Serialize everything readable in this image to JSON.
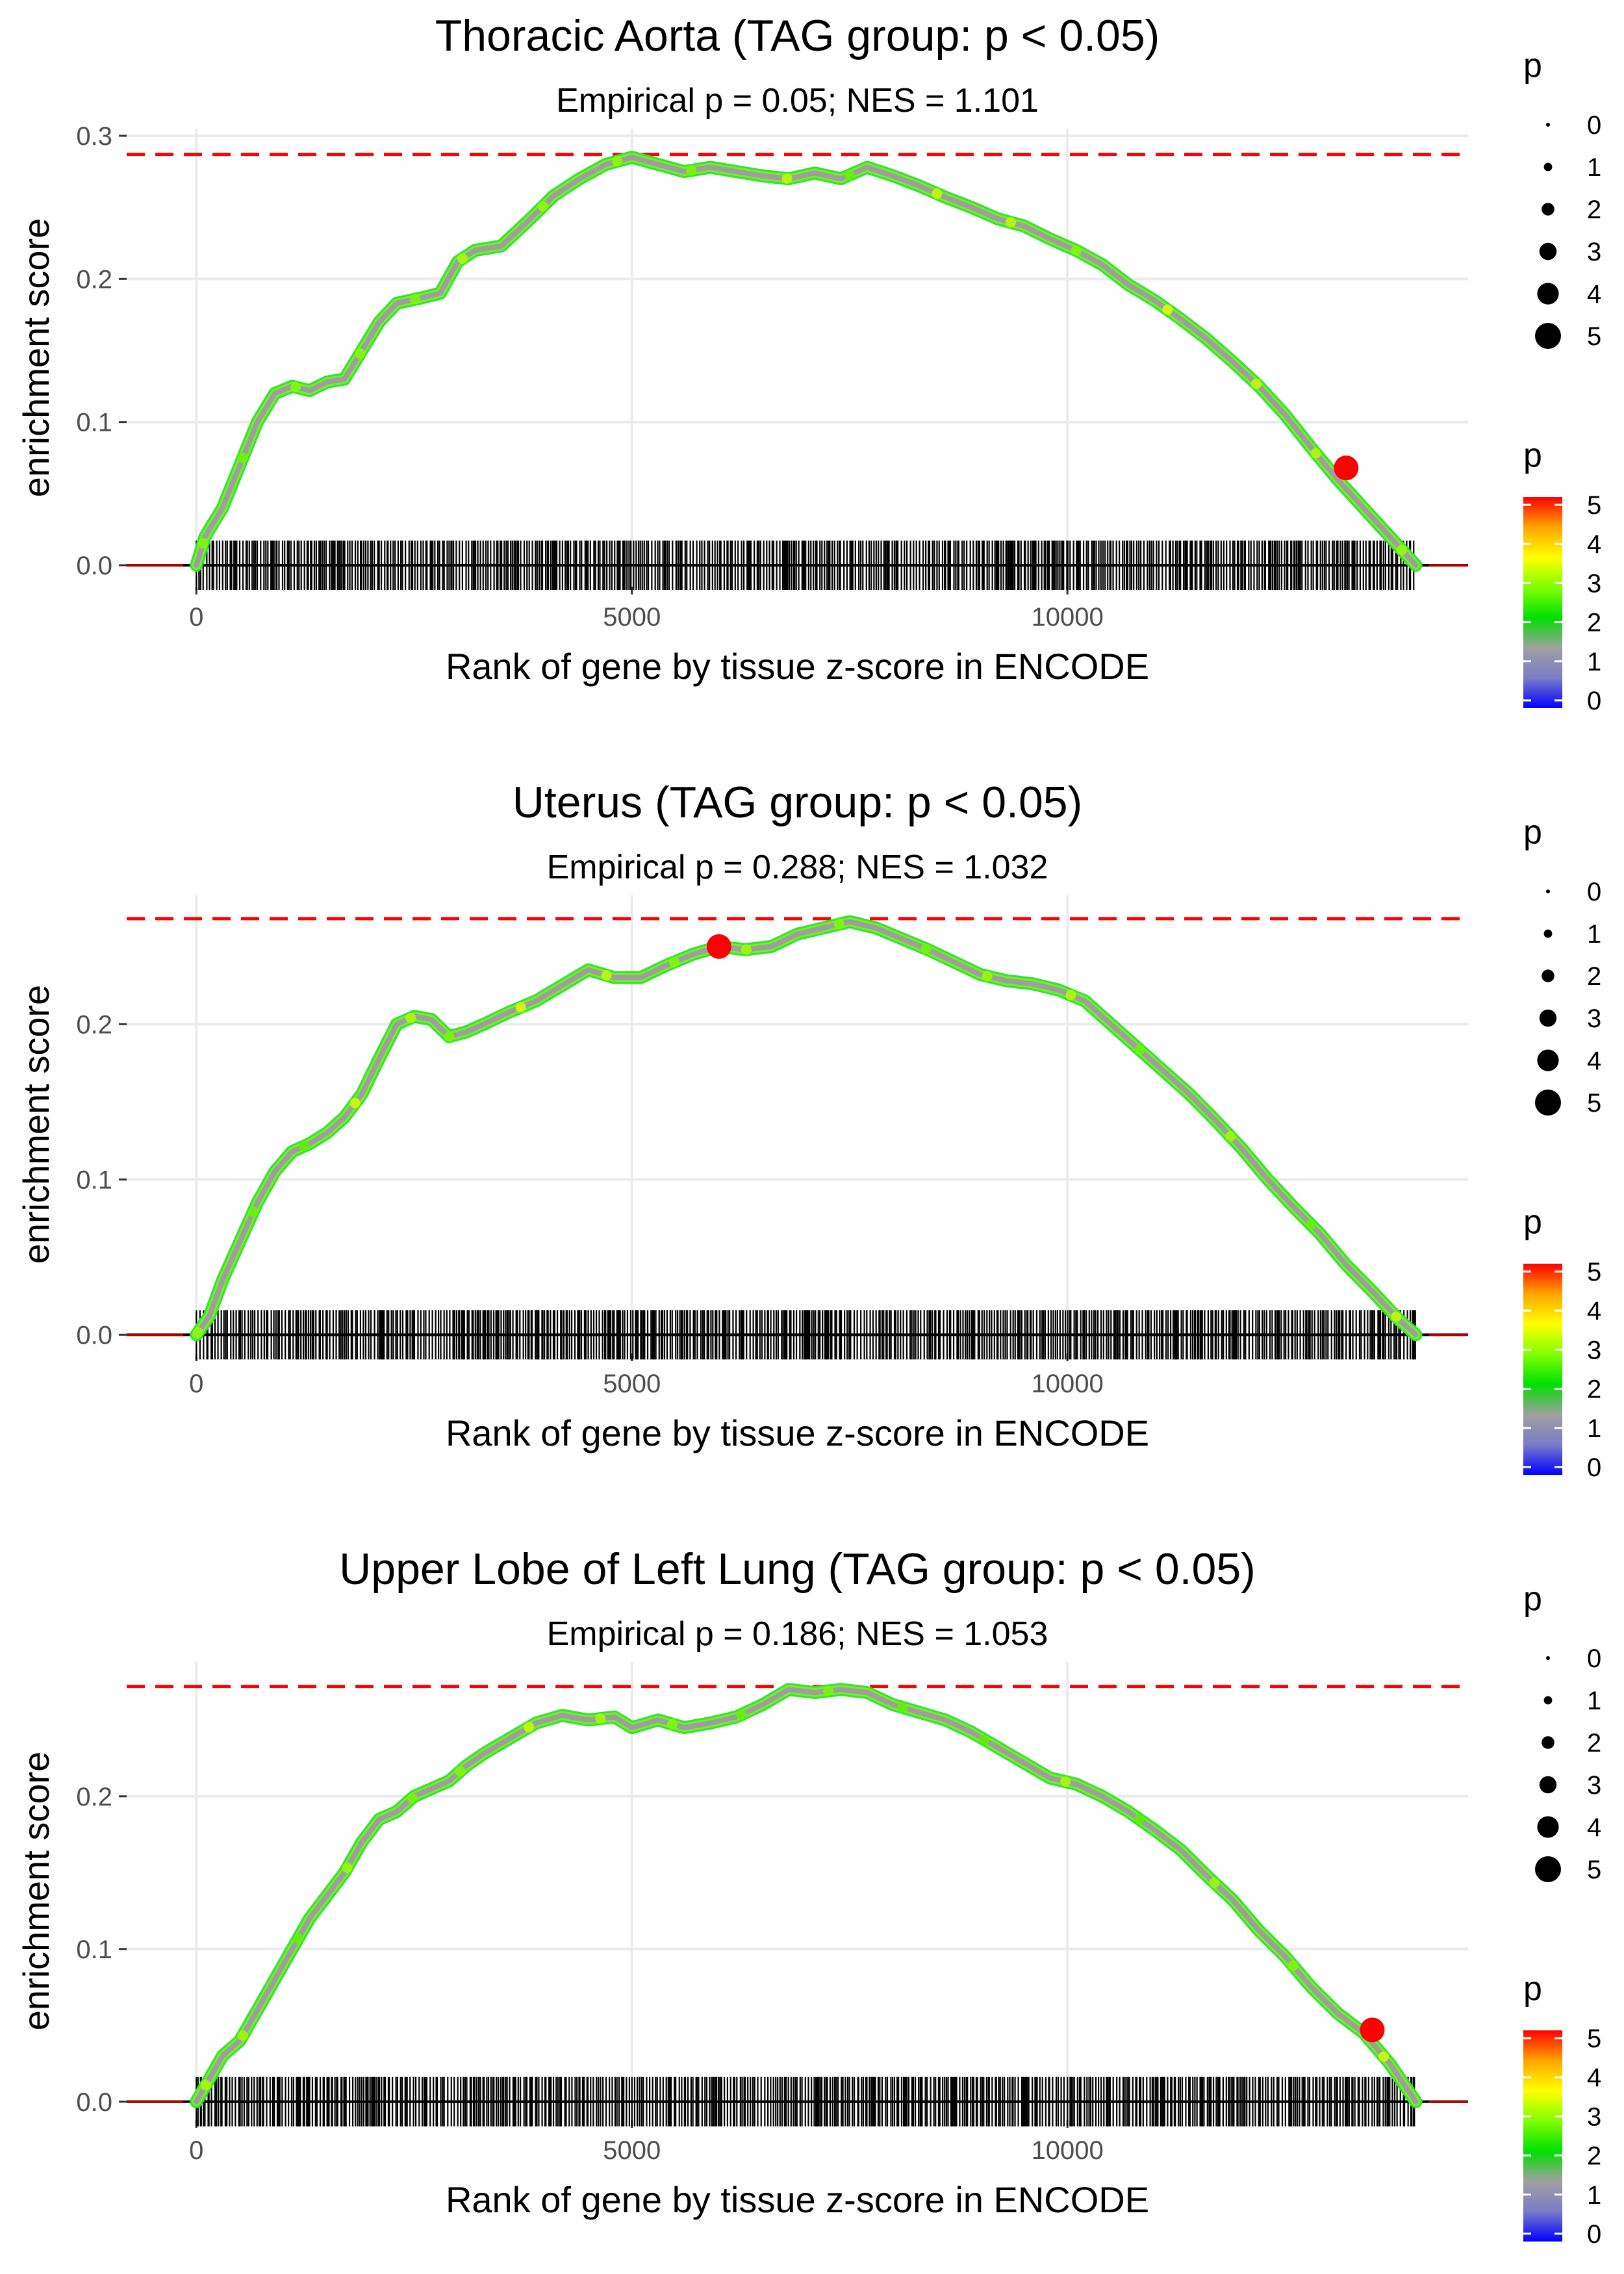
{
  "figure": {
    "palette": {
      "background": "#ffffff",
      "grid": "#ebebeb",
      "axis_text": "#4d4d4d",
      "title_text": "#000000",
      "max_line": "#ff0000",
      "baseline": "#000000",
      "rug": "#000000",
      "curve_core": "#9e9e9e",
      "highlight": "#ee1111"
    },
    "legend": {
      "size_title": "p",
      "size_levels": [
        0,
        1,
        2,
        3,
        4,
        5
      ],
      "color_title": "p",
      "color_ticks": [
        0,
        1,
        2,
        3,
        4,
        5
      ],
      "color_stops": [
        "#0000ff",
        "#7b7bc8",
        "#a0a0a0",
        "#00e000",
        "#80ff00",
        "#ffff00",
        "#ffa500",
        "#ff0000"
      ]
    }
  },
  "chart_data": [
    {
      "type": "line",
      "title": "Thoracic Aorta (TAG group: p < 0.05)",
      "subtitle": "Empirical p = 0.05; NES = 1.101",
      "xlabel": "Rank of gene by tissue z-score in ENCODE",
      "ylabel": "enrichment score",
      "xlim": [
        -800,
        14600
      ],
      "ylim": [
        -0.015,
        0.305
      ],
      "xticks": [
        0,
        5000,
        10000
      ],
      "yticks": [
        0.0,
        0.1,
        0.2,
        0.3
      ],
      "ytick_labels": [
        "0.0",
        "0.1",
        "0.2",
        "0.3"
      ],
      "max_es": 0.287,
      "n_genes": 14000,
      "curve": [
        [
          0,
          0.0
        ],
        [
          100,
          0.02
        ],
        [
          300,
          0.04
        ],
        [
          500,
          0.07
        ],
        [
          700,
          0.1
        ],
        [
          900,
          0.12
        ],
        [
          1100,
          0.125
        ],
        [
          1300,
          0.122
        ],
        [
          1500,
          0.128
        ],
        [
          1700,
          0.13
        ],
        [
          1900,
          0.15
        ],
        [
          2100,
          0.17
        ],
        [
          2300,
          0.183
        ],
        [
          2600,
          0.187
        ],
        [
          2800,
          0.19
        ],
        [
          3000,
          0.212
        ],
        [
          3200,
          0.22
        ],
        [
          3500,
          0.223
        ],
        [
          3800,
          0.24
        ],
        [
          4100,
          0.258
        ],
        [
          4400,
          0.27
        ],
        [
          4700,
          0.28
        ],
        [
          5000,
          0.285
        ],
        [
          5300,
          0.28
        ],
        [
          5600,
          0.275
        ],
        [
          5900,
          0.278
        ],
        [
          6200,
          0.275
        ],
        [
          6500,
          0.272
        ],
        [
          6800,
          0.27
        ],
        [
          7100,
          0.274
        ],
        [
          7400,
          0.27
        ],
        [
          7700,
          0.278
        ],
        [
          8000,
          0.272
        ],
        [
          8300,
          0.265
        ],
        [
          8600,
          0.257
        ],
        [
          8900,
          0.25
        ],
        [
          9200,
          0.242
        ],
        [
          9500,
          0.237
        ],
        [
          9800,
          0.228
        ],
        [
          10100,
          0.22
        ],
        [
          10400,
          0.21
        ],
        [
          10700,
          0.196
        ],
        [
          11000,
          0.185
        ],
        [
          11300,
          0.172
        ],
        [
          11600,
          0.158
        ],
        [
          11900,
          0.142
        ],
        [
          12200,
          0.125
        ],
        [
          12500,
          0.105
        ],
        [
          12800,
          0.082
        ],
        [
          13100,
          0.06
        ],
        [
          13400,
          0.04
        ],
        [
          13700,
          0.02
        ],
        [
          14000,
          0.0
        ]
      ],
      "highlight_point": {
        "x": 13200,
        "y": 0.068,
        "p": 5
      }
    },
    {
      "type": "line",
      "title": "Uterus (TAG group: p < 0.05)",
      "subtitle": "Empirical p = 0.288; NES = 1.032",
      "xlabel": "Rank of gene by tissue z-score in ENCODE",
      "ylabel": "enrichment score",
      "xlim": [
        -800,
        14600
      ],
      "ylim": [
        -0.012,
        0.283
      ],
      "xticks": [
        0,
        5000,
        10000
      ],
      "yticks": [
        0.0,
        0.1,
        0.2
      ],
      "ytick_labels": [
        "0.0",
        "0.1",
        "0.2"
      ],
      "max_es": 0.268,
      "n_genes": 14000,
      "curve": [
        [
          0,
          0.0
        ],
        [
          150,
          0.012
        ],
        [
          300,
          0.035
        ],
        [
          500,
          0.06
        ],
        [
          700,
          0.085
        ],
        [
          900,
          0.105
        ],
        [
          1100,
          0.118
        ],
        [
          1300,
          0.123
        ],
        [
          1500,
          0.13
        ],
        [
          1700,
          0.14
        ],
        [
          1900,
          0.155
        ],
        [
          2100,
          0.178
        ],
        [
          2300,
          0.2
        ],
        [
          2500,
          0.205
        ],
        [
          2700,
          0.203
        ],
        [
          2900,
          0.192
        ],
        [
          3100,
          0.195
        ],
        [
          3300,
          0.2
        ],
        [
          3600,
          0.208
        ],
        [
          3900,
          0.215
        ],
        [
          4200,
          0.225
        ],
        [
          4500,
          0.235
        ],
        [
          4800,
          0.23
        ],
        [
          5100,
          0.23
        ],
        [
          5400,
          0.238
        ],
        [
          5700,
          0.245
        ],
        [
          6000,
          0.25
        ],
        [
          6300,
          0.248
        ],
        [
          6600,
          0.25
        ],
        [
          6900,
          0.258
        ],
        [
          7200,
          0.262
        ],
        [
          7500,
          0.266
        ],
        [
          7800,
          0.262
        ],
        [
          8100,
          0.255
        ],
        [
          8400,
          0.248
        ],
        [
          8700,
          0.24
        ],
        [
          9000,
          0.232
        ],
        [
          9300,
          0.228
        ],
        [
          9600,
          0.226
        ],
        [
          9900,
          0.222
        ],
        [
          10200,
          0.215
        ],
        [
          10500,
          0.2
        ],
        [
          10800,
          0.185
        ],
        [
          11100,
          0.17
        ],
        [
          11400,
          0.155
        ],
        [
          11700,
          0.138
        ],
        [
          12000,
          0.12
        ],
        [
          12300,
          0.1
        ],
        [
          12600,
          0.082
        ],
        [
          12900,
          0.065
        ],
        [
          13200,
          0.045
        ],
        [
          13500,
          0.028
        ],
        [
          13800,
          0.01
        ],
        [
          14000,
          0.0
        ]
      ],
      "highlight_point": {
        "x": 6000,
        "y": 0.25,
        "p": 5
      }
    },
    {
      "type": "line",
      "title": "Upper Lobe of Left Lung (TAG group: p < 0.05)",
      "subtitle": "Empirical p = 0.186; NES = 1.053",
      "xlabel": "Rank of gene by tissue z-score in ENCODE",
      "ylabel": "enrichment score",
      "xlim": [
        -800,
        14600
      ],
      "ylim": [
        -0.012,
        0.288
      ],
      "xticks": [
        0,
        5000,
        10000
      ],
      "yticks": [
        0.0,
        0.1,
        0.2
      ],
      "ytick_labels": [
        "0.0",
        "0.1",
        "0.2"
      ],
      "max_es": 0.272,
      "n_genes": 14000,
      "curve": [
        [
          0,
          0.0
        ],
        [
          150,
          0.015
        ],
        [
          300,
          0.03
        ],
        [
          500,
          0.04
        ],
        [
          700,
          0.06
        ],
        [
          900,
          0.08
        ],
        [
          1100,
          0.1
        ],
        [
          1300,
          0.12
        ],
        [
          1500,
          0.135
        ],
        [
          1700,
          0.15
        ],
        [
          1900,
          0.17
        ],
        [
          2100,
          0.185
        ],
        [
          2300,
          0.19
        ],
        [
          2500,
          0.2
        ],
        [
          2700,
          0.205
        ],
        [
          2900,
          0.21
        ],
        [
          3100,
          0.22
        ],
        [
          3300,
          0.228
        ],
        [
          3600,
          0.238
        ],
        [
          3900,
          0.248
        ],
        [
          4200,
          0.253
        ],
        [
          4500,
          0.25
        ],
        [
          4800,
          0.252
        ],
        [
          5000,
          0.245
        ],
        [
          5300,
          0.25
        ],
        [
          5600,
          0.245
        ],
        [
          5900,
          0.248
        ],
        [
          6200,
          0.252
        ],
        [
          6500,
          0.26
        ],
        [
          6800,
          0.27
        ],
        [
          7100,
          0.268
        ],
        [
          7400,
          0.27
        ],
        [
          7700,
          0.268
        ],
        [
          8000,
          0.26
        ],
        [
          8300,
          0.255
        ],
        [
          8600,
          0.25
        ],
        [
          8900,
          0.242
        ],
        [
          9200,
          0.232
        ],
        [
          9500,
          0.222
        ],
        [
          9800,
          0.212
        ],
        [
          10100,
          0.208
        ],
        [
          10400,
          0.2
        ],
        [
          10700,
          0.19
        ],
        [
          11000,
          0.178
        ],
        [
          11300,
          0.165
        ],
        [
          11600,
          0.148
        ],
        [
          11900,
          0.132
        ],
        [
          12200,
          0.112
        ],
        [
          12500,
          0.095
        ],
        [
          12800,
          0.075
        ],
        [
          13100,
          0.058
        ],
        [
          13400,
          0.045
        ],
        [
          13700,
          0.025
        ],
        [
          14000,
          0.0
        ]
      ],
      "highlight_point": {
        "x": 13500,
        "y": 0.047,
        "p": 5
      }
    }
  ]
}
